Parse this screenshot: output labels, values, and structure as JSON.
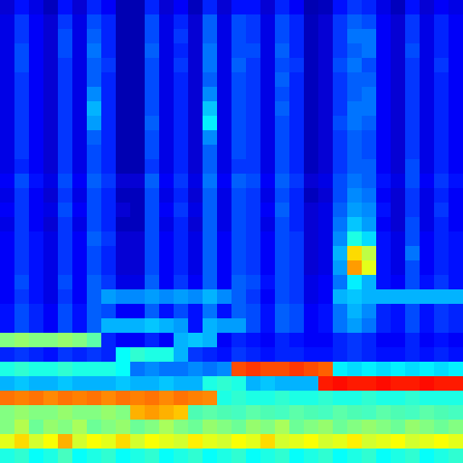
{
  "chart_data": {
    "type": "heatmap",
    "tick_labels": false,
    "zlim": [
      0,
      1
    ],
    "cells": [
      [
        0.08,
        0.14,
        0.1,
        0.06,
        0.14,
        0.08,
        0.16,
        0.12,
        0.05,
        0.05,
        0.16,
        0.08,
        0.12,
        0.06,
        0.16,
        0.08,
        0.14,
        0.14,
        0.08,
        0.16,
        0.12,
        0.05,
        0.06,
        0.14,
        0.18,
        0.16,
        0.1,
        0.06,
        0.14,
        0.08,
        0.12,
        0.1
      ],
      [
        0.1,
        0.18,
        0.12,
        0.08,
        0.18,
        0.1,
        0.2,
        0.16,
        0.05,
        0.05,
        0.2,
        0.1,
        0.16,
        0.08,
        0.22,
        0.1,
        0.2,
        0.18,
        0.1,
        0.2,
        0.16,
        0.06,
        0.08,
        0.18,
        0.22,
        0.2,
        0.12,
        0.08,
        0.18,
        0.1,
        0.16,
        0.12
      ],
      [
        0.1,
        0.18,
        0.12,
        0.08,
        0.2,
        0.1,
        0.22,
        0.16,
        0.05,
        0.05,
        0.2,
        0.1,
        0.18,
        0.08,
        0.22,
        0.1,
        0.2,
        0.18,
        0.1,
        0.2,
        0.16,
        0.06,
        0.08,
        0.18,
        0.24,
        0.24,
        0.12,
        0.08,
        0.18,
        0.1,
        0.16,
        0.12
      ],
      [
        0.1,
        0.2,
        0.12,
        0.08,
        0.2,
        0.1,
        0.24,
        0.16,
        0.05,
        0.05,
        0.22,
        0.1,
        0.16,
        0.08,
        0.24,
        0.1,
        0.2,
        0.2,
        0.1,
        0.22,
        0.16,
        0.06,
        0.08,
        0.18,
        0.22,
        0.24,
        0.12,
        0.08,
        0.2,
        0.1,
        0.16,
        0.12
      ],
      [
        0.1,
        0.2,
        0.12,
        0.08,
        0.18,
        0.1,
        0.22,
        0.18,
        0.05,
        0.05,
        0.2,
        0.1,
        0.18,
        0.08,
        0.24,
        0.1,
        0.22,
        0.18,
        0.1,
        0.2,
        0.18,
        0.06,
        0.08,
        0.2,
        0.24,
        0.2,
        0.12,
        0.08,
        0.18,
        0.1,
        0.18,
        0.12
      ],
      [
        0.1,
        0.18,
        0.12,
        0.08,
        0.18,
        0.1,
        0.22,
        0.16,
        0.05,
        0.05,
        0.2,
        0.1,
        0.16,
        0.08,
        0.22,
        0.1,
        0.2,
        0.18,
        0.1,
        0.22,
        0.16,
        0.06,
        0.08,
        0.18,
        0.22,
        0.22,
        0.12,
        0.08,
        0.18,
        0.1,
        0.16,
        0.12
      ],
      [
        0.1,
        0.18,
        0.12,
        0.08,
        0.18,
        0.1,
        0.26,
        0.16,
        0.05,
        0.05,
        0.2,
        0.1,
        0.16,
        0.08,
        0.26,
        0.1,
        0.2,
        0.18,
        0.1,
        0.2,
        0.16,
        0.06,
        0.08,
        0.18,
        0.22,
        0.24,
        0.12,
        0.08,
        0.18,
        0.1,
        0.16,
        0.12
      ],
      [
        0.1,
        0.18,
        0.12,
        0.08,
        0.18,
        0.1,
        0.3,
        0.16,
        0.05,
        0.05,
        0.2,
        0.1,
        0.16,
        0.08,
        0.32,
        0.1,
        0.2,
        0.18,
        0.1,
        0.22,
        0.16,
        0.06,
        0.08,
        0.18,
        0.24,
        0.24,
        0.12,
        0.08,
        0.18,
        0.1,
        0.16,
        0.12
      ],
      [
        0.1,
        0.18,
        0.12,
        0.08,
        0.18,
        0.1,
        0.28,
        0.16,
        0.05,
        0.05,
        0.22,
        0.1,
        0.16,
        0.08,
        0.36,
        0.1,
        0.2,
        0.18,
        0.1,
        0.2,
        0.16,
        0.06,
        0.08,
        0.2,
        0.24,
        0.22,
        0.12,
        0.08,
        0.18,
        0.1,
        0.16,
        0.12
      ],
      [
        0.1,
        0.18,
        0.12,
        0.08,
        0.18,
        0.1,
        0.22,
        0.16,
        0.05,
        0.05,
        0.2,
        0.1,
        0.16,
        0.08,
        0.26,
        0.1,
        0.2,
        0.18,
        0.1,
        0.2,
        0.16,
        0.06,
        0.08,
        0.18,
        0.22,
        0.2,
        0.12,
        0.08,
        0.18,
        0.1,
        0.16,
        0.12
      ],
      [
        0.1,
        0.18,
        0.12,
        0.08,
        0.18,
        0.1,
        0.2,
        0.16,
        0.05,
        0.05,
        0.2,
        0.1,
        0.16,
        0.08,
        0.22,
        0.1,
        0.2,
        0.18,
        0.1,
        0.2,
        0.16,
        0.06,
        0.08,
        0.18,
        0.22,
        0.2,
        0.12,
        0.08,
        0.18,
        0.1,
        0.16,
        0.12
      ],
      [
        0.1,
        0.16,
        0.12,
        0.08,
        0.18,
        0.1,
        0.2,
        0.16,
        0.05,
        0.05,
        0.18,
        0.1,
        0.16,
        0.08,
        0.22,
        0.1,
        0.18,
        0.18,
        0.1,
        0.2,
        0.16,
        0.06,
        0.08,
        0.18,
        0.22,
        0.22,
        0.12,
        0.08,
        0.2,
        0.1,
        0.16,
        0.12
      ],
      [
        0.12,
        0.2,
        0.14,
        0.1,
        0.2,
        0.12,
        0.22,
        0.18,
        0.08,
        0.08,
        0.22,
        0.12,
        0.18,
        0.1,
        0.24,
        0.12,
        0.22,
        0.2,
        0.12,
        0.22,
        0.18,
        0.08,
        0.1,
        0.2,
        0.24,
        0.22,
        0.14,
        0.1,
        0.2,
        0.12,
        0.18,
        0.14
      ],
      [
        0.1,
        0.18,
        0.12,
        0.08,
        0.18,
        0.1,
        0.2,
        0.16,
        0.06,
        0.06,
        0.2,
        0.1,
        0.16,
        0.08,
        0.22,
        0.1,
        0.2,
        0.18,
        0.1,
        0.2,
        0.16,
        0.06,
        0.08,
        0.2,
        0.26,
        0.24,
        0.12,
        0.08,
        0.18,
        0.1,
        0.16,
        0.12
      ],
      [
        0.12,
        0.18,
        0.12,
        0.1,
        0.2,
        0.12,
        0.2,
        0.16,
        0.08,
        0.06,
        0.2,
        0.12,
        0.18,
        0.1,
        0.22,
        0.1,
        0.2,
        0.18,
        0.12,
        0.22,
        0.16,
        0.08,
        0.1,
        0.22,
        0.28,
        0.26,
        0.14,
        0.08,
        0.18,
        0.1,
        0.18,
        0.12
      ],
      [
        0.1,
        0.18,
        0.12,
        0.08,
        0.18,
        0.1,
        0.2,
        0.16,
        0.06,
        0.06,
        0.2,
        0.1,
        0.16,
        0.08,
        0.22,
        0.1,
        0.2,
        0.18,
        0.1,
        0.2,
        0.16,
        0.08,
        0.1,
        0.24,
        0.32,
        0.28,
        0.12,
        0.08,
        0.2,
        0.1,
        0.16,
        0.12
      ],
      [
        0.12,
        0.18,
        0.14,
        0.1,
        0.18,
        0.12,
        0.22,
        0.18,
        0.08,
        0.08,
        0.2,
        0.12,
        0.16,
        0.1,
        0.22,
        0.12,
        0.2,
        0.18,
        0.12,
        0.2,
        0.18,
        0.08,
        0.1,
        0.26,
        0.4,
        0.34,
        0.14,
        0.1,
        0.2,
        0.12,
        0.16,
        0.14
      ],
      [
        0.12,
        0.18,
        0.14,
        0.1,
        0.18,
        0.12,
        0.2,
        0.16,
        0.08,
        0.08,
        0.2,
        0.12,
        0.16,
        0.1,
        0.22,
        0.12,
        0.2,
        0.18,
        0.12,
        0.2,
        0.18,
        0.08,
        0.1,
        0.3,
        0.66,
        0.56,
        0.14,
        0.1,
        0.24,
        0.12,
        0.16,
        0.14
      ],
      [
        0.12,
        0.18,
        0.14,
        0.1,
        0.18,
        0.12,
        0.2,
        0.16,
        0.08,
        0.08,
        0.2,
        0.12,
        0.16,
        0.1,
        0.22,
        0.12,
        0.2,
        0.18,
        0.12,
        0.2,
        0.18,
        0.08,
        0.1,
        0.28,
        0.72,
        0.6,
        0.14,
        0.1,
        0.2,
        0.12,
        0.16,
        0.14
      ],
      [
        0.12,
        0.2,
        0.14,
        0.1,
        0.2,
        0.12,
        0.22,
        0.18,
        0.1,
        0.1,
        0.22,
        0.12,
        0.18,
        0.12,
        0.22,
        0.12,
        0.22,
        0.2,
        0.14,
        0.2,
        0.18,
        0.1,
        0.12,
        0.24,
        0.36,
        0.3,
        0.14,
        0.12,
        0.2,
        0.14,
        0.18,
        0.14
      ],
      [
        0.12,
        0.18,
        0.14,
        0.1,
        0.18,
        0.12,
        0.22,
        0.28,
        0.26,
        0.26,
        0.28,
        0.26,
        0.28,
        0.26,
        0.3,
        0.26,
        0.22,
        0.18,
        0.12,
        0.2,
        0.18,
        0.1,
        0.12,
        0.3,
        0.32,
        0.3,
        0.3,
        0.3,
        0.3,
        0.3,
        0.3,
        0.3
      ],
      [
        0.14,
        0.2,
        0.16,
        0.12,
        0.2,
        0.14,
        0.22,
        0.2,
        0.12,
        0.12,
        0.22,
        0.14,
        0.2,
        0.14,
        0.24,
        0.14,
        0.22,
        0.2,
        0.14,
        0.22,
        0.2,
        0.12,
        0.14,
        0.24,
        0.3,
        0.26,
        0.16,
        0.14,
        0.2,
        0.14,
        0.18,
        0.16
      ],
      [
        0.14,
        0.2,
        0.16,
        0.12,
        0.2,
        0.14,
        0.22,
        0.3,
        0.3,
        0.3,
        0.32,
        0.3,
        0.28,
        0.14,
        0.3,
        0.28,
        0.28,
        0.2,
        0.14,
        0.22,
        0.2,
        0.12,
        0.14,
        0.24,
        0.28,
        0.24,
        0.16,
        0.14,
        0.2,
        0.14,
        0.18,
        0.16
      ],
      [
        0.5,
        0.52,
        0.5,
        0.5,
        0.52,
        0.5,
        0.46,
        0.16,
        0.12,
        0.12,
        0.16,
        0.12,
        0.3,
        0.32,
        0.3,
        0.12,
        0.16,
        0.14,
        0.12,
        0.16,
        0.14,
        0.12,
        0.12,
        0.16,
        0.18,
        0.16,
        0.12,
        0.12,
        0.16,
        0.12,
        0.14,
        0.12
      ],
      [
        0.16,
        0.18,
        0.16,
        0.14,
        0.18,
        0.16,
        0.18,
        0.16,
        0.38,
        0.42,
        0.4,
        0.4,
        0.3,
        0.18,
        0.16,
        0.14,
        0.18,
        0.16,
        0.14,
        0.16,
        0.16,
        0.14,
        0.14,
        0.16,
        0.18,
        0.16,
        0.14,
        0.14,
        0.16,
        0.14,
        0.16,
        0.14
      ],
      [
        0.4,
        0.42,
        0.4,
        0.4,
        0.42,
        0.4,
        0.4,
        0.4,
        0.38,
        0.24,
        0.26,
        0.24,
        0.24,
        0.26,
        0.24,
        0.26,
        0.8,
        0.82,
        0.8,
        0.8,
        0.82,
        0.8,
        0.78,
        0.36,
        0.34,
        0.36,
        0.34,
        0.36,
        0.34,
        0.36,
        0.34,
        0.36
      ],
      [
        0.3,
        0.32,
        0.3,
        0.3,
        0.32,
        0.3,
        0.3,
        0.3,
        0.32,
        0.3,
        0.3,
        0.32,
        0.3,
        0.3,
        0.4,
        0.42,
        0.4,
        0.3,
        0.32,
        0.3,
        0.3,
        0.3,
        0.85,
        0.86,
        0.85,
        0.85,
        0.86,
        0.85,
        0.85,
        0.86,
        0.85,
        0.85
      ],
      [
        0.76,
        0.75,
        0.76,
        0.74,
        0.76,
        0.75,
        0.76,
        0.74,
        0.76,
        0.75,
        0.76,
        0.74,
        0.76,
        0.75,
        0.74,
        0.4,
        0.42,
        0.4,
        0.4,
        0.42,
        0.4,
        0.4,
        0.42,
        0.4,
        0.4,
        0.42,
        0.4,
        0.4,
        0.42,
        0.4,
        0.4,
        0.4
      ],
      [
        0.5,
        0.52,
        0.5,
        0.5,
        0.52,
        0.5,
        0.5,
        0.52,
        0.5,
        0.7,
        0.72,
        0.7,
        0.68,
        0.45,
        0.46,
        0.45,
        0.44,
        0.46,
        0.45,
        0.44,
        0.46,
        0.45,
        0.44,
        0.46,
        0.45,
        0.44,
        0.46,
        0.45,
        0.44,
        0.46,
        0.45,
        0.44
      ],
      [
        0.5,
        0.55,
        0.48,
        0.52,
        0.5,
        0.54,
        0.48,
        0.5,
        0.52,
        0.48,
        0.5,
        0.54,
        0.5,
        0.48,
        0.52,
        0.5,
        0.48,
        0.52,
        0.5,
        0.54,
        0.48,
        0.5,
        0.52,
        0.48,
        0.5,
        0.52,
        0.5,
        0.48,
        0.52,
        0.5,
        0.48,
        0.5
      ],
      [
        0.6,
        0.66,
        0.58,
        0.62,
        0.7,
        0.58,
        0.62,
        0.6,
        0.66,
        0.58,
        0.62,
        0.6,
        0.58,
        0.64,
        0.6,
        0.58,
        0.62,
        0.6,
        0.66,
        0.58,
        0.6,
        0.62,
        0.58,
        0.6,
        0.64,
        0.58,
        0.6,
        0.62,
        0.58,
        0.6,
        0.62,
        0.6
      ],
      [
        0.4,
        0.42,
        0.38,
        0.4,
        0.44,
        0.38,
        0.4,
        0.42,
        0.38,
        0.4,
        0.42,
        0.38,
        0.4,
        0.42,
        0.38,
        0.4,
        0.42,
        0.38,
        0.4,
        0.42,
        0.38,
        0.4,
        0.42,
        0.38,
        0.4,
        0.42,
        0.38,
        0.4,
        0.42,
        0.38,
        0.4,
        0.42
      ]
    ]
  }
}
